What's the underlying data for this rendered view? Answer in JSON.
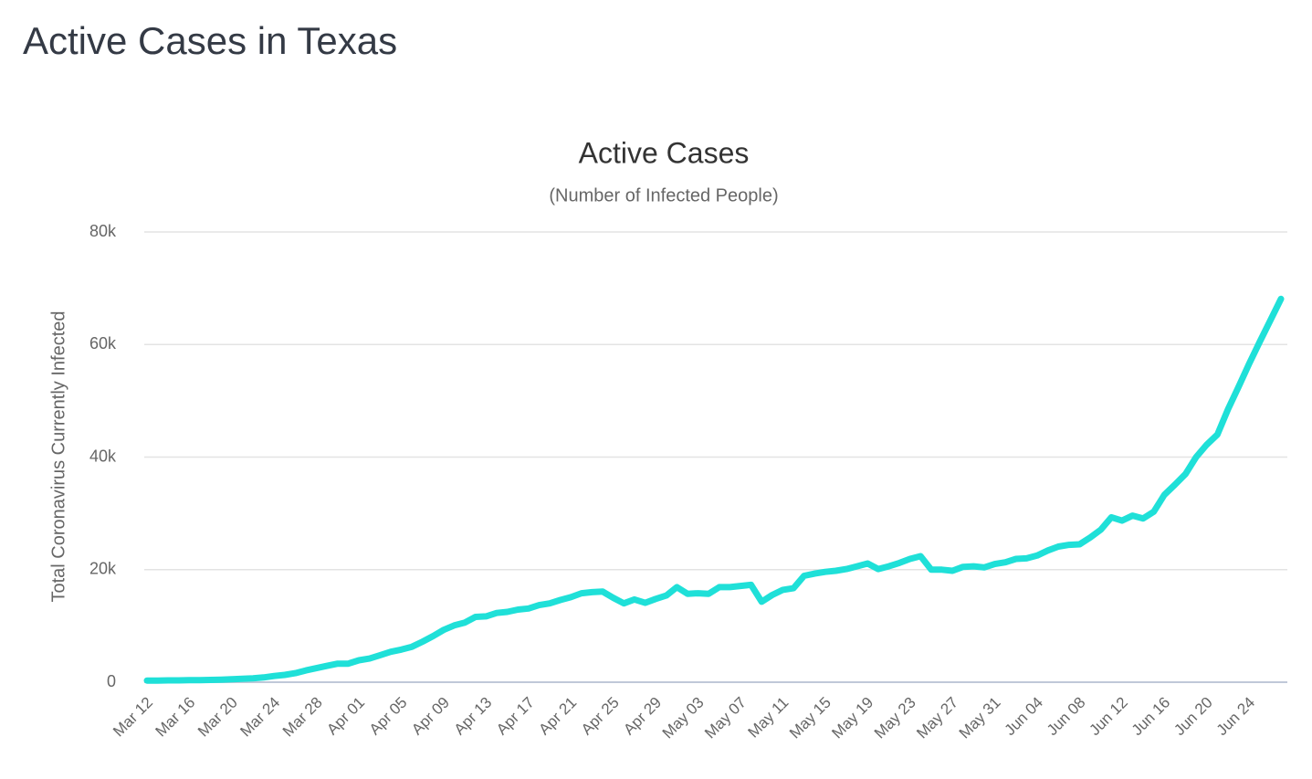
{
  "page_title": "Active Cases in Texas",
  "chart_data": {
    "type": "line",
    "title": "Active Cases",
    "subtitle": "(Number of Infected People)",
    "y_label": "Total Coronavirus Currently Infected",
    "color": "#1fe0d8",
    "grid": true,
    "ylim": [
      0,
      80000
    ],
    "yticks": [
      0,
      {
        "value": 20000,
        "label": "20k"
      },
      {
        "value": 40000,
        "label": "40k"
      },
      {
        "value": 60000,
        "label": "60k"
      },
      {
        "value": 80000,
        "label": "80k"
      }
    ],
    "categories": [
      "Mar 12",
      null,
      null,
      null,
      "Mar 16",
      null,
      null,
      null,
      "Mar 20",
      null,
      null,
      null,
      "Mar 24",
      null,
      null,
      null,
      "Mar 28",
      null,
      null,
      null,
      "Apr 01",
      null,
      null,
      null,
      "Apr 05",
      null,
      null,
      null,
      "Apr 09",
      null,
      null,
      null,
      "Apr 13",
      null,
      null,
      null,
      "Apr 17",
      null,
      null,
      null,
      "Apr 21",
      null,
      null,
      null,
      "Apr 25",
      null,
      null,
      null,
      "Apr 29",
      null,
      null,
      null,
      "May 03",
      null,
      null,
      null,
      "May 07",
      null,
      null,
      null,
      "May 11",
      null,
      null,
      null,
      "May 15",
      null,
      null,
      null,
      "May 19",
      null,
      null,
      null,
      "May 23",
      null,
      null,
      null,
      "May 27",
      null,
      null,
      null,
      "May 31",
      null,
      null,
      null,
      "Jun 04",
      null,
      null,
      null,
      "Jun 08",
      null,
      null,
      null,
      "Jun 12",
      null,
      null,
      null,
      "Jun 16",
      null,
      null,
      null,
      "Jun 20",
      null,
      null,
      null,
      "Jun 24",
      null,
      null,
      null
    ],
    "values": [
      300,
      300,
      320,
      330,
      350,
      380,
      400,
      450,
      520,
      600,
      700,
      850,
      1100,
      1300,
      1600,
      2100,
      2500,
      2900,
      3300,
      3300,
      3900,
      4200,
      4800,
      5400,
      5800,
      6300,
      7200,
      8200,
      9300,
      10100,
      10600,
      11600,
      11700,
      12300,
      12500,
      12900,
      13100,
      13700,
      14000,
      14600,
      15100,
      15800,
      16000,
      16100,
      15000,
      14000,
      14700,
      14100,
      14800,
      15400,
      16900,
      15700,
      15800,
      15700,
      16900,
      16900,
      17100,
      17300,
      14300,
      15500,
      16400,
      16700,
      18900,
      19300,
      19600,
      19800,
      20100,
      20600,
      21100,
      20100,
      20600,
      21200,
      21900,
      22400,
      20000,
      20000,
      19800,
      20500,
      20600,
      20400,
      21000,
      21300,
      21900,
      22000,
      22500,
      23400,
      24100,
      24400,
      24500,
      25700,
      27100,
      29300,
      28700,
      29600,
      29100,
      30300,
      33300,
      35100,
      37000,
      40000,
      42200,
      44000,
      48500,
      52500,
      56600,
      60500,
      64300,
      68100
    ]
  }
}
